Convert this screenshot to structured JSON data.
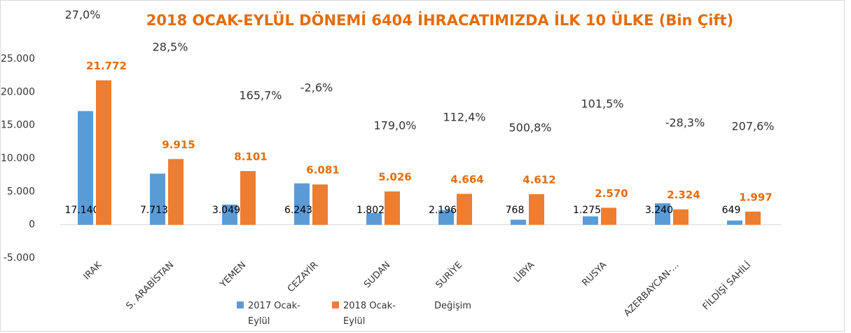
{
  "chart_data": {
    "type": "bar",
    "title": "2018 OCAK-EYLÜL DÖNEMİ 6404 İHRACATIMIZDA İLK  10 ÜLKE (Bin Çift)",
    "categories": [
      "IRAK",
      "S. ARABİSTAN",
      "YEMEN",
      "CEZAYİR",
      "SUDAN",
      "SURİYE",
      "LİBYA",
      "RUSYA",
      "AZERBAYCAN-...",
      "FİLDİŞİ SAHİLİ"
    ],
    "series": [
      {
        "name": "2017 Ocak-Eylül",
        "color": "#5b9bd5",
        "values": [
          17140,
          7713,
          3049,
          6243,
          1802,
          2196,
          768,
          1275,
          3240,
          649
        ],
        "value_labels": [
          "17.140",
          "7.713",
          "3.049",
          "6.243",
          "1.802",
          "2.196",
          "768",
          "1.275",
          "3.240",
          "649"
        ]
      },
      {
        "name": "2018 Ocak-Eylül",
        "color": "#ed7d31",
        "values": [
          21772,
          9915,
          8101,
          6081,
          5026,
          4664,
          4612,
          2570,
          2324,
          1997
        ],
        "value_labels": [
          "21.772",
          "9.915",
          "8.101",
          "6.081",
          "5.026",
          "4.664",
          "4.612",
          "2.570",
          "2.324",
          "1.997"
        ]
      },
      {
        "name": "Değişim",
        "values": [
          27.0,
          28.5,
          165.7,
          -2.6,
          179.0,
          112.4,
          500.8,
          101.5,
          -28.3,
          207.6
        ],
        "value_labels": [
          "27,0%",
          "28,5%",
          "165,7%",
          "-2,6%",
          "179,0%",
          "112,4%",
          "500,8%",
          "101,5%",
          "-28,3%",
          "207,6%"
        ]
      }
    ],
    "ylim": [
      -5000,
      25000
    ],
    "yticks": [
      {
        "value": -5000,
        "label": "-5.000"
      },
      0,
      {
        "value": 5000,
        "label": "5.000"
      },
      {
        "value": 10000,
        "label": "10.000"
      },
      {
        "value": 15000,
        "label": "15.000"
      },
      {
        "value": 20000,
        "label": "20.000"
      },
      {
        "value": 25000,
        "label": "25.000"
      }
    ],
    "grid": false
  }
}
